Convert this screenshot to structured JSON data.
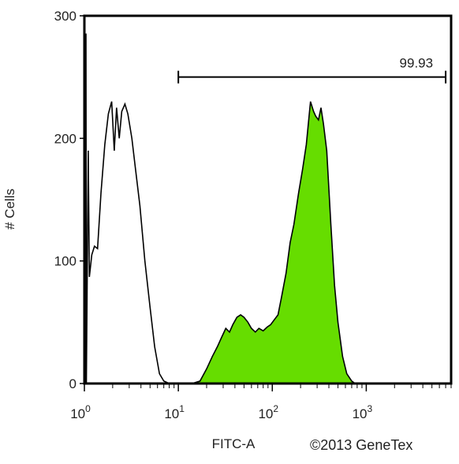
{
  "chart_data": {
    "type": "area",
    "xlabel": "FITC-A",
    "ylabel": "# Cells",
    "x_scale": "log",
    "xlim": [
      1,
      8000
    ],
    "ylim": [
      0,
      300
    ],
    "x_ticks": [
      {
        "value": 1,
        "base": "10",
        "exp": "0"
      },
      {
        "value": 10,
        "base": "10",
        "exp": "1"
      },
      {
        "value": 100,
        "base": "10",
        "exp": "2"
      },
      {
        "value": 1000,
        "base": "10",
        "exp": "3"
      }
    ],
    "y_ticks": [
      0,
      100,
      200,
      300
    ],
    "gate": {
      "label": "99.93",
      "x_start": 10,
      "x_end": 7000,
      "y": 250
    },
    "series": [
      {
        "kind": "outline",
        "color": "#000000",
        "points": [
          [
            1.02,
            0
          ],
          [
            1.03,
            285
          ],
          [
            1.04,
            285
          ],
          [
            1.05,
            0
          ],
          [
            1.1,
            190
          ],
          [
            1.13,
            87
          ],
          [
            1.2,
            105
          ],
          [
            1.28,
            112
          ],
          [
            1.38,
            110
          ],
          [
            1.5,
            155
          ],
          [
            1.65,
            195
          ],
          [
            1.8,
            220
          ],
          [
            1.95,
            230
          ],
          [
            2.08,
            190
          ],
          [
            2.2,
            225
          ],
          [
            2.35,
            200
          ],
          [
            2.5,
            222
          ],
          [
            2.7,
            228
          ],
          [
            2.9,
            220
          ],
          [
            3.2,
            200
          ],
          [
            3.5,
            175
          ],
          [
            3.9,
            145
          ],
          [
            4.4,
            100
          ],
          [
            5.0,
            62
          ],
          [
            5.6,
            30
          ],
          [
            6.3,
            8
          ],
          [
            7.0,
            2
          ],
          [
            8.0,
            0
          ]
        ]
      },
      {
        "kind": "filled",
        "color": "#66dd00",
        "points": [
          [
            14,
            0
          ],
          [
            17,
            2
          ],
          [
            20,
            12
          ],
          [
            23,
            22
          ],
          [
            26,
            30
          ],
          [
            29,
            38
          ],
          [
            32,
            45
          ],
          [
            35,
            42
          ],
          [
            38,
            48
          ],
          [
            42,
            54
          ],
          [
            46,
            56
          ],
          [
            50,
            54
          ],
          [
            55,
            50
          ],
          [
            60,
            45
          ],
          [
            66,
            42
          ],
          [
            72,
            45
          ],
          [
            80,
            43
          ],
          [
            88,
            46
          ],
          [
            96,
            48
          ],
          [
            105,
            52
          ],
          [
            115,
            56
          ],
          [
            125,
            70
          ],
          [
            140,
            90
          ],
          [
            155,
            115
          ],
          [
            170,
            130
          ],
          [
            190,
            155
          ],
          [
            210,
            175
          ],
          [
            230,
            195
          ],
          [
            255,
            230
          ],
          [
            275,
            222
          ],
          [
            290,
            218
          ],
          [
            310,
            215
          ],
          [
            330,
            225
          ],
          [
            350,
            212
          ],
          [
            380,
            190
          ],
          [
            420,
            130
          ],
          [
            460,
            80
          ],
          [
            500,
            50
          ],
          [
            560,
            22
          ],
          [
            620,
            8
          ],
          [
            700,
            2
          ],
          [
            760,
            0
          ]
        ]
      }
    ]
  },
  "copyright": "©2013 GeneTex"
}
